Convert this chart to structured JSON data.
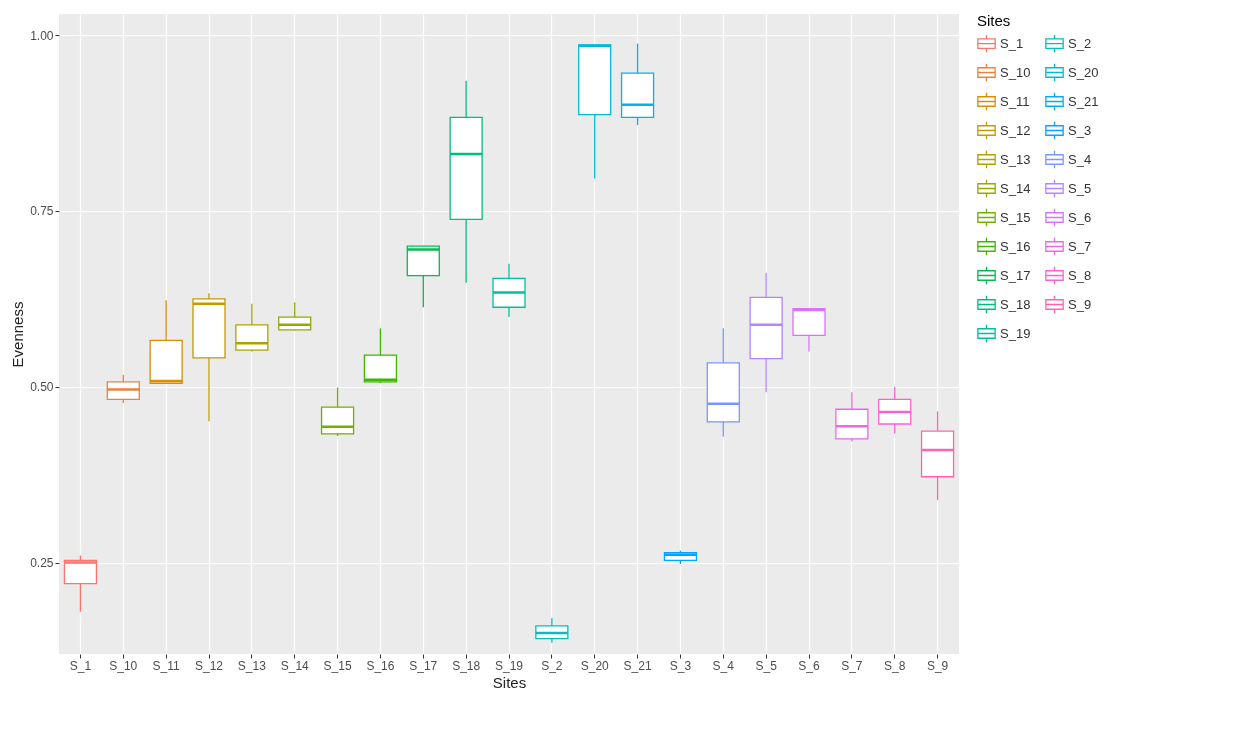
{
  "chart_data": {
    "type": "box",
    "xlabel": "Sites",
    "ylabel": "Evenness",
    "legend_title": "Sites",
    "categories": [
      "S_1",
      "S_10",
      "S_11",
      "S_12",
      "S_13",
      "S_14",
      "S_15",
      "S_16",
      "S_17",
      "S_18",
      "S_19",
      "S_2",
      "S_20",
      "S_21",
      "S_3",
      "S_4",
      "S_5",
      "S_6",
      "S_7",
      "S_8",
      "S_9"
    ],
    "series": [
      {
        "name": "S_1",
        "color": "#f8766d",
        "boxes": [
          {
            "low": 0.18,
            "q1": 0.22,
            "median": 0.25,
            "q3": 0.253,
            "high": 0.26
          },
          null,
          null,
          null,
          null,
          null,
          null,
          null,
          null,
          null,
          null,
          null,
          null,
          null,
          null,
          null,
          null,
          null,
          null,
          null,
          null
        ]
      },
      {
        "name": "S_10",
        "color": "#ec8239",
        "boxes": [
          null,
          {
            "low": 0.477,
            "q1": 0.482,
            "median": 0.496,
            "q3": 0.507,
            "high": 0.517
          },
          null,
          null,
          null,
          null,
          null,
          null,
          null,
          null,
          null,
          null,
          null,
          null,
          null,
          null,
          null,
          null,
          null,
          null,
          null
        ]
      },
      {
        "name": "S_11",
        "color": "#db8e00",
        "boxes": [
          null,
          null,
          {
            "low": 0.505,
            "q1": 0.505,
            "median": 0.508,
            "q3": 0.566,
            "high": 0.623
          },
          null,
          null,
          null,
          null,
          null,
          null,
          null,
          null,
          null,
          null,
          null,
          null,
          null,
          null,
          null,
          null,
          null,
          null
        ]
      },
      {
        "name": "S_12",
        "color": "#c79800",
        "boxes": [
          null,
          null,
          null,
          {
            "low": 0.451,
            "q1": 0.541,
            "median": 0.618,
            "q3": 0.625,
            "high": 0.633
          },
          null,
          null,
          null,
          null,
          null,
          null,
          null,
          null,
          null,
          null,
          null,
          null,
          null,
          null,
          null,
          null,
          null
        ]
      },
      {
        "name": "S_13",
        "color": "#afa100",
        "boxes": [
          null,
          null,
          null,
          null,
          {
            "low": 0.55,
            "q1": 0.552,
            "median": 0.562,
            "q3": 0.588,
            "high": 0.618
          },
          null,
          null,
          null,
          null,
          null,
          null,
          null,
          null,
          null,
          null,
          null,
          null,
          null,
          null,
          null,
          null
        ]
      },
      {
        "name": "S_14",
        "color": "#94aa00",
        "boxes": [
          null,
          null,
          null,
          null,
          null,
          {
            "low": 0.58,
            "q1": 0.581,
            "median": 0.588,
            "q3": 0.599,
            "high": 0.62
          },
          null,
          null,
          null,
          null,
          null,
          null,
          null,
          null,
          null,
          null,
          null,
          null,
          null,
          null,
          null
        ]
      },
      {
        "name": "S_15",
        "color": "#72b000",
        "boxes": [
          null,
          null,
          null,
          null,
          null,
          null,
          {
            "low": 0.43,
            "q1": 0.433,
            "median": 0.443,
            "q3": 0.471,
            "high": 0.499
          },
          null,
          null,
          null,
          null,
          null,
          null,
          null,
          null,
          null,
          null,
          null,
          null,
          null,
          null
        ]
      },
      {
        "name": "S_16",
        "color": "#3db700",
        "boxes": [
          null,
          null,
          null,
          null,
          null,
          null,
          null,
          {
            "low": 0.505,
            "q1": 0.507,
            "median": 0.51,
            "q3": 0.545,
            "high": 0.583
          },
          null,
          null,
          null,
          null,
          null,
          null,
          null,
          null,
          null,
          null,
          null,
          null,
          null
        ]
      },
      {
        "name": "S_17",
        "color": "#00bc51",
        "boxes": [
          null,
          null,
          null,
          null,
          null,
          null,
          null,
          null,
          {
            "low": 0.613,
            "q1": 0.658,
            "median": 0.695,
            "q3": 0.7,
            "high": 0.7
          },
          null,
          null,
          null,
          null,
          null,
          null,
          null,
          null,
          null,
          null,
          null,
          null
        ]
      },
      {
        "name": "S_18",
        "color": "#00bf7d",
        "boxes": [
          null,
          null,
          null,
          null,
          null,
          null,
          null,
          null,
          null,
          {
            "low": 0.648,
            "q1": 0.738,
            "median": 0.831,
            "q3": 0.883,
            "high": 0.935
          },
          null,
          null,
          null,
          null,
          null,
          null,
          null,
          null,
          null,
          null,
          null
        ]
      },
      {
        "name": "S_19",
        "color": "#00c0a1",
        "boxes": [
          null,
          null,
          null,
          null,
          null,
          null,
          null,
          null,
          null,
          null,
          {
            "low": 0.599,
            "q1": 0.613,
            "median": 0.634,
            "q3": 0.654,
            "high": 0.675
          },
          null,
          null,
          null,
          null,
          null,
          null,
          null,
          null,
          null,
          null
        ]
      },
      {
        "name": "S_2",
        "color": "#00bfc1",
        "boxes": [
          null,
          null,
          null,
          null,
          null,
          null,
          null,
          null,
          null,
          null,
          null,
          {
            "low": 0.136,
            "q1": 0.142,
            "median": 0.15,
            "q3": 0.16,
            "high": 0.171
          },
          null,
          null,
          null,
          null,
          null,
          null,
          null,
          null,
          null
        ]
      },
      {
        "name": "S_20",
        "color": "#00bade",
        "boxes": [
          null,
          null,
          null,
          null,
          null,
          null,
          null,
          null,
          null,
          null,
          null,
          null,
          {
            "low": 0.796,
            "q1": 0.887,
            "median": 0.985,
            "q3": 0.986,
            "high": 0.986
          },
          null,
          null,
          null,
          null,
          null,
          null,
          null,
          null
        ]
      },
      {
        "name": "S_21",
        "color": "#00b2f3",
        "boxes": [
          null,
          null,
          null,
          null,
          null,
          null,
          null,
          null,
          null,
          null,
          null,
          null,
          null,
          {
            "low": 0.872,
            "q1": 0.883,
            "median": 0.901,
            "q3": 0.946,
            "high": 0.988
          },
          null,
          null,
          null,
          null,
          null,
          null,
          null
        ]
      },
      {
        "name": "S_3",
        "color": "#00a5ff",
        "boxes": [
          null,
          null,
          null,
          null,
          null,
          null,
          null,
          null,
          null,
          null,
          null,
          null,
          null,
          null,
          {
            "low": 0.248,
            "q1": 0.253,
            "median": 0.261,
            "q3": 0.264,
            "high": 0.267
          },
          null,
          null,
          null,
          null,
          null,
          null
        ]
      },
      {
        "name": "S_4",
        "color": "#7997ff",
        "boxes": [
          null,
          null,
          null,
          null,
          null,
          null,
          null,
          null,
          null,
          null,
          null,
          null,
          null,
          null,
          null,
          {
            "low": 0.429,
            "q1": 0.45,
            "median": 0.476,
            "q3": 0.534,
            "high": 0.583
          },
          null,
          null,
          null,
          null,
          null
        ]
      },
      {
        "name": "S_5",
        "color": "#b386ff",
        "boxes": [
          null,
          null,
          null,
          null,
          null,
          null,
          null,
          null,
          null,
          null,
          null,
          null,
          null,
          null,
          null,
          null,
          {
            "low": 0.492,
            "q1": 0.54,
            "median": 0.588,
            "q3": 0.627,
            "high": 0.662
          },
          null,
          null,
          null,
          null
        ]
      },
      {
        "name": "S_6",
        "color": "#db72fb",
        "boxes": [
          null,
          null,
          null,
          null,
          null,
          null,
          null,
          null,
          null,
          null,
          null,
          null,
          null,
          null,
          null,
          null,
          null,
          {
            "low": 0.55,
            "q1": 0.573,
            "median": 0.609,
            "q3": 0.611,
            "high": 0.611
          },
          null,
          null,
          null
        ]
      },
      {
        "name": "S_7",
        "color": "#f066ea",
        "boxes": [
          null,
          null,
          null,
          null,
          null,
          null,
          null,
          null,
          null,
          null,
          null,
          null,
          null,
          null,
          null,
          null,
          null,
          null,
          {
            "low": 0.422,
            "q1": 0.426,
            "median": 0.444,
            "q3": 0.468,
            "high": 0.492
          },
          null,
          null
        ]
      },
      {
        "name": "S_8",
        "color": "#fd61d1",
        "boxes": [
          null,
          null,
          null,
          null,
          null,
          null,
          null,
          null,
          null,
          null,
          null,
          null,
          null,
          null,
          null,
          null,
          null,
          null,
          null,
          {
            "low": 0.433,
            "q1": 0.447,
            "median": 0.464,
            "q3": 0.482,
            "high": 0.5
          },
          null
        ]
      },
      {
        "name": "S_9",
        "color": "#ff65ae",
        "boxes": [
          null,
          null,
          null,
          null,
          null,
          null,
          null,
          null,
          null,
          null,
          null,
          null,
          null,
          null,
          null,
          null,
          null,
          null,
          null,
          null,
          {
            "low": 0.339,
            "q1": 0.372,
            "median": 0.41,
            "q3": 0.437,
            "high": 0.465
          }
        ]
      }
    ],
    "ylim": [
      0.12,
      1.03
    ],
    "yticks": [
      {
        "value": 0.25,
        "label": "0.25"
      },
      {
        "value": 0.5,
        "label": "0.50"
      },
      {
        "value": 0.75,
        "label": "0.75"
      },
      {
        "value": 1,
        "label": "1.00"
      }
    ],
    "grid": true,
    "legend": "right"
  }
}
